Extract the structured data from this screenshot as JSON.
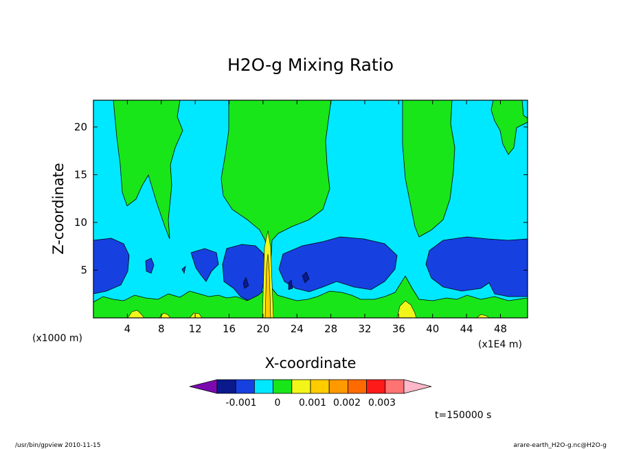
{
  "chart_data": {
    "type": "heatmap",
    "title": "H2O-g Mixing Ratio",
    "xlabel": "X-coordinate",
    "ylabel": "Z-coordinate",
    "x_unit_left": "(x1000 m)",
    "x_unit_right": "(x1E4 m)",
    "xlim": [
      0,
      51.2
    ],
    "ylim": [
      0,
      22.8
    ],
    "x_ticks": [
      4,
      8,
      12,
      16,
      20,
      24,
      28,
      32,
      36,
      40,
      44,
      48
    ],
    "y_ticks": [
      5,
      10,
      15,
      20
    ],
    "colorbar": {
      "levels": [
        -0.001,
        0,
        0.001,
        0.002,
        0.003
      ],
      "labels": [
        "-0.001",
        "0",
        "0.001",
        "0.002",
        "0.003"
      ],
      "colors": [
        "#7a0ab0",
        "#0a1a8c",
        "#1740e0",
        "#00e8ff",
        "#19e619",
        "#f2f51a",
        "#ffcc00",
        "#ff9900",
        "#ff6a00",
        "#ff1a1a",
        "#ff7373",
        "#ffb8c8"
      ]
    },
    "time_label": "t=150000 s",
    "footer_left": "/usr/bin/gpview  2010-11-15",
    "footer_right": "arare-earth_H2O-g.nc@H2O-g",
    "field_colors": {
      "background": "#00e8ff",
      "plume": "#19e619",
      "low": "#1740e0",
      "lowest": "#0a1a8c",
      "high": "#f2f51a",
      "higher": "#ffcc00"
    }
  }
}
